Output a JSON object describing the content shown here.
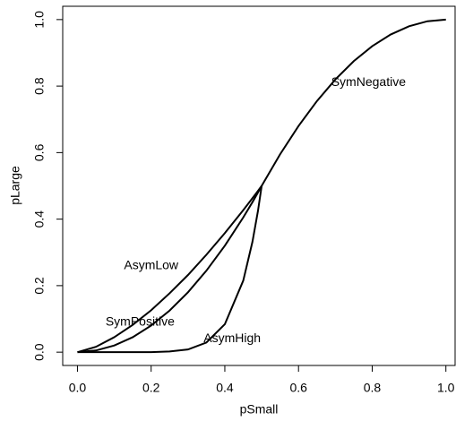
{
  "chart_data": {
    "type": "line",
    "x_label": "pSmall",
    "y_label": "pLarge",
    "x": [
      0,
      0.05,
      0.1,
      0.15,
      0.2,
      0.25,
      0.3,
      0.35,
      0.4,
      0.45,
      0.475,
      0.49,
      0.5,
      0.55,
      0.6,
      0.65,
      0.7,
      0.75,
      0.8,
      0.85,
      0.9,
      0.95,
      1.0
    ],
    "series": [
      {
        "name": "AsymLow",
        "color": "#000000",
        "values": [
          0,
          0.016,
          0.045,
          0.082,
          0.126,
          0.177,
          0.232,
          0.293,
          0.358,
          0.427,
          0.463,
          0.485,
          0.5,
          null,
          null,
          null,
          null,
          null,
          null,
          null,
          null,
          null,
          null
        ]
      },
      {
        "name": "SymPositive",
        "color": "#000000",
        "values": [
          0,
          0.005,
          0.02,
          0.045,
          0.08,
          0.125,
          0.18,
          0.245,
          0.32,
          0.405,
          0.451,
          0.48,
          0.5,
          null,
          null,
          null,
          null,
          null,
          null,
          null,
          null,
          null,
          null
        ]
      },
      {
        "name": "AsymHigh",
        "color": "#000000",
        "values": [
          0,
          0,
          0,
          0,
          0,
          0.002,
          0.008,
          0.029,
          0.084,
          0.215,
          0.332,
          0.425,
          0.5,
          null,
          null,
          null,
          null,
          null,
          null,
          null,
          null,
          null,
          null
        ]
      },
      {
        "name": "SymNegative",
        "color": "#000000",
        "values": [
          null,
          null,
          null,
          null,
          null,
          null,
          null,
          null,
          null,
          null,
          null,
          null,
          0.5,
          0.595,
          0.68,
          0.755,
          0.82,
          0.875,
          0.92,
          0.955,
          0.98,
          0.995,
          1.0
        ]
      }
    ],
    "xlim": [
      -0.04,
      1.025
    ],
    "ylim": [
      -0.04,
      1.04
    ],
    "xticks": [
      {
        "value": 0,
        "label": "0.0"
      },
      0.2,
      0.4,
      0.6,
      0.8,
      {
        "value": 1,
        "label": "1.0"
      }
    ],
    "yticks": [
      {
        "value": 0,
        "label": "0.0"
      },
      0.2,
      0.4,
      0.6,
      0.8,
      {
        "value": 1,
        "label": "1.0"
      }
    ]
  }
}
